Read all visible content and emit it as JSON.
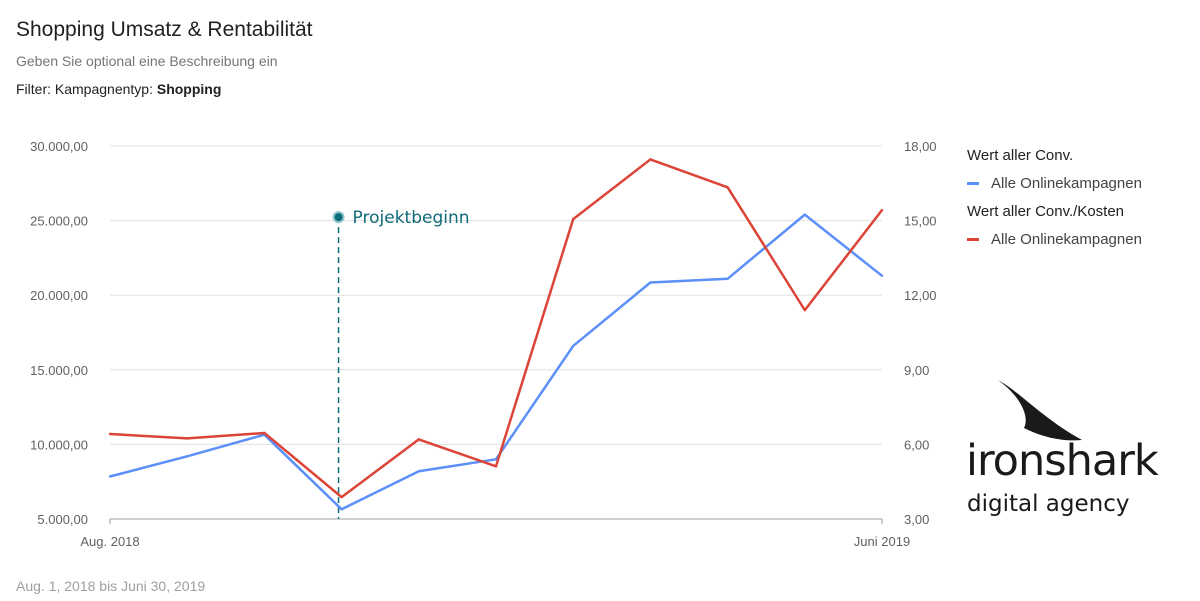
{
  "header": {
    "title": "Shopping Umsatz & Rentabilität",
    "subtitle": "Geben Sie optional eine Beschreibung ein",
    "filter_label": "Filter: Kampagnentyp: ",
    "filter_value": "Shopping"
  },
  "footer": {
    "date_range": "Aug. 1, 2018 bis Juni 30, 2019"
  },
  "legend": {
    "metric_1": "Wert aller Conv.",
    "series_1": "Alle Onlinekampagnen",
    "metric_2": "Wert aller Conv./Kosten",
    "series_2": "Alle Onlinekampagnen"
  },
  "logo": {
    "wordmark": "ironshark",
    "tagline": "digital agency"
  },
  "chart_data": {
    "type": "line",
    "x_tick_labels": [
      "Aug. 2018",
      "Juni 2019"
    ],
    "x": [
      "2018-08",
      "2018-09",
      "2018-10",
      "2018-11",
      "2018-12",
      "2019-01",
      "2019-02",
      "2019-03",
      "2019-04",
      "2019-05",
      "2019-06"
    ],
    "y_left": {
      "lim": [
        5000,
        30000
      ],
      "ticks": [
        5000,
        10000,
        15000,
        20000,
        25000,
        30000
      ],
      "tick_labels": [
        "5.000,00",
        "10.000,00",
        "15.000,00",
        "20.000,00",
        "25.000,00",
        "30.000,00"
      ]
    },
    "y_right": {
      "lim": [
        3,
        18
      ],
      "ticks": [
        3,
        6,
        9,
        12,
        15,
        18
      ],
      "tick_labels": [
        "3,00",
        "6,00",
        "9,00",
        "12,00",
        "15,00",
        "18,00"
      ]
    },
    "series": [
      {
        "name": "Alle Onlinekampagnen",
        "metric": "Wert aller Conv.",
        "axis": "left",
        "color": "#5b8ff9",
        "values": [
          7850,
          9200,
          10650,
          5650,
          8200,
          9000,
          16600,
          20850,
          21100,
          25400,
          21300
        ]
      },
      {
        "name": "Alle Onlinekampagnen",
        "metric": "Wert aller Conv./Kosten",
        "axis": "right",
        "color": "#db4437",
        "values": [
          6.42,
          6.24,
          6.46,
          3.88,
          6.2,
          5.12,
          15.06,
          17.46,
          16.34,
          11.4,
          15.42
        ]
      }
    ],
    "annotation": {
      "label": "Projektbeginn",
      "x": "2018-10-30",
      "y_right": 15.14,
      "color": "#0e6b78"
    },
    "grid": true,
    "legend_position": "right"
  }
}
